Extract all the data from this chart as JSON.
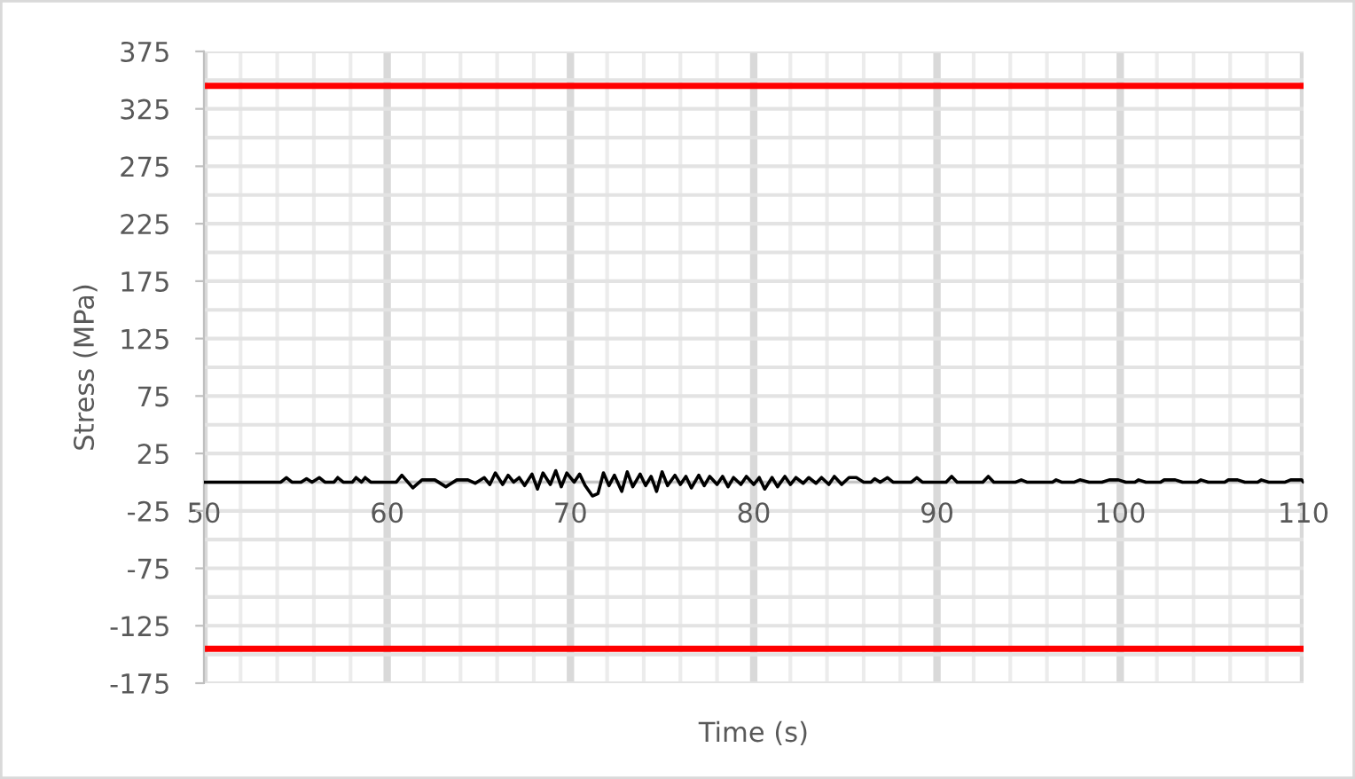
{
  "chart_data": {
    "type": "line",
    "xlabel": "Time (s)",
    "ylabel": "Stress (MPa)",
    "xlim": [
      50,
      110
    ],
    "xticks": [
      50,
      60,
      70,
      80,
      90,
      100,
      110
    ],
    "ylim": [
      -175,
      375
    ],
    "yticks": [
      -175,
      -125,
      -75,
      -25,
      25,
      75,
      125,
      175,
      225,
      275,
      325,
      375
    ],
    "grid": true,
    "line_style": "solid",
    "marker": "none",
    "ref_lines": [
      {
        "axis": "y",
        "value": 345,
        "color": "#ff0000"
      },
      {
        "axis": "y",
        "value": -145,
        "color": "#ff0000"
      }
    ],
    "series": [
      {
        "color": "#000000",
        "x": [
          50,
          54.2,
          54.5,
          54.8,
          55.3,
          55.6,
          55.9,
          56.3,
          56.6,
          57.1,
          57.3,
          57.6,
          58.1,
          58.3,
          58.6,
          58.8,
          59.1,
          60.5,
          60.8,
          61.4,
          61.9,
          62.6,
          63.2,
          63.8,
          64.4,
          64.8,
          65.3,
          65.6,
          65.9,
          66.3,
          66.6,
          66.9,
          67.2,
          67.5,
          67.9,
          68.2,
          68.5,
          68.9,
          69.2,
          69.5,
          69.8,
          70.2,
          70.5,
          70.8,
          71.2,
          71.5,
          71.8,
          72.1,
          72.4,
          72.8,
          73.1,
          73.4,
          73.8,
          74.1,
          74.4,
          74.7,
          75.0,
          75.3,
          75.7,
          76.0,
          76.3,
          76.6,
          77.0,
          77.3,
          77.6,
          78.0,
          78.3,
          78.6,
          78.9,
          79.3,
          79.6,
          80,
          80.3,
          80.6,
          81,
          81.3,
          81.7,
          82,
          82.3,
          82.7,
          83,
          83.4,
          83.7,
          84.1,
          84.4,
          84.8,
          85.2,
          85.6,
          86,
          86.4,
          86.6,
          86.9,
          87.3,
          87.6,
          88.6,
          88.9,
          89.2,
          90.5,
          90.8,
          91.1,
          92.5,
          92.8,
          93.1,
          94.3,
          94.6,
          94.9,
          96.3,
          96.5,
          96.8,
          97.5,
          97.8,
          98.3,
          99,
          99.4,
          99.9,
          100.3,
          100.8,
          101,
          101.4,
          102.2,
          102.4,
          103,
          103.4,
          104.2,
          104.4,
          104.8,
          105.7,
          105.9,
          106.4,
          106.8,
          107.5,
          107.7,
          108.1,
          109,
          109.3,
          109.9,
          110
        ],
        "values": [
          0,
          0,
          4,
          0,
          0,
          3,
          0,
          4,
          0,
          0,
          4,
          0,
          0,
          4,
          0,
          4,
          0,
          0,
          6,
          -5,
          2,
          2,
          -4,
          2,
          2,
          -1,
          4,
          -2,
          8,
          -2,
          6,
          0,
          4,
          -3,
          7,
          -6,
          8,
          -2,
          10,
          -4,
          8,
          0,
          7,
          -3,
          -12,
          -10,
          8,
          -3,
          6,
          -8,
          9,
          -4,
          7,
          -3,
          5,
          -8,
          9,
          -3,
          6,
          -2,
          5,
          -5,
          6,
          -3,
          5,
          -2,
          5,
          -4,
          4,
          -2,
          5,
          -2,
          4,
          -6,
          4,
          -4,
          5,
          -2,
          4,
          -1,
          4,
          -1,
          4,
          -2,
          5,
          -2,
          4,
          4,
          0,
          0,
          3,
          0,
          4,
          0,
          0,
          4,
          0,
          0,
          5,
          0,
          0,
          5,
          0,
          0,
          2,
          0,
          0,
          2,
          0,
          0,
          2,
          0,
          0,
          2,
          2,
          0,
          0,
          2,
          0,
          0,
          2,
          2,
          0,
          0,
          2,
          0,
          0,
          2,
          2,
          0,
          0,
          2,
          0,
          0,
          2,
          2,
          0
        ]
      }
    ]
  }
}
